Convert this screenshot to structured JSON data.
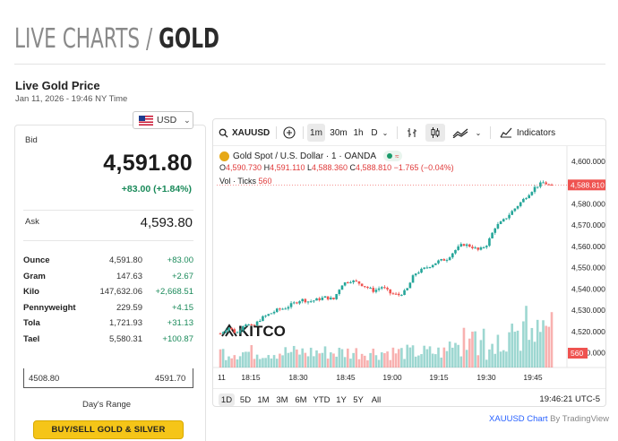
{
  "header": {
    "title_prefix": "LIVE CHARTS / ",
    "title_main": "GOLD"
  },
  "price_panel": {
    "subtitle": "Live Gold Price",
    "timestamp": "Jan 11, 2026 - 19:46 NY Time",
    "currency": "USD",
    "bid_label": "Bid",
    "bid": "4,591.80",
    "bid_change": "+83.00 (+1.84%)",
    "ask_label": "Ask",
    "ask": "4,593.80",
    "units": [
      {
        "name": "Ounce",
        "price": "4,591.80",
        "change": "+83.00"
      },
      {
        "name": "Gram",
        "price": "147.63",
        "change": "+2.67"
      },
      {
        "name": "Kilo",
        "price": "147,632.06",
        "change": "+2,668.51"
      },
      {
        "name": "Pennyweight",
        "price": "229.59",
        "change": "+4.15"
      },
      {
        "name": "Tola",
        "price": "1,721.93",
        "change": "+31.13"
      },
      {
        "name": "Tael",
        "price": "5,580.31",
        "change": "+100.87"
      }
    ],
    "range_low": "4508.80",
    "range_high": "4591.70",
    "range_label": "Day's Range",
    "buy_button": "BUY/SELL GOLD & SILVER"
  },
  "chart_toolbar": {
    "symbol": "XAUUSD",
    "intervals": [
      "1m",
      "30m",
      "1h",
      "D"
    ],
    "active_interval": "1m",
    "indicators_label": "Indicators"
  },
  "chart_legend": {
    "instrument": "Gold Spot / U.S. Dollar · 1 · OANDA",
    "open_label": "O",
    "open": "4,590.730",
    "high_label": "H",
    "high": "4,591.110",
    "low_label": "L",
    "low": "4,588.360",
    "close_label": "C",
    "close": "4,588.810",
    "change": "−1.765 (−0.04%)",
    "volume_label": "Vol · Ticks",
    "volume": "560"
  },
  "chart_data": {
    "type": "candlestick",
    "title": "Gold Spot / U.S. Dollar · 1 · OANDA",
    "x_tick_labels": [
      "11",
      "18:15",
      "18:30",
      "18:45",
      "19:00",
      "19:15",
      "19:30",
      "19:45"
    ],
    "y_tick_labels": [
      "4,600.000",
      "4,590.000",
      "4,580.000",
      "4,570.000",
      "4,560.000",
      "4,550.000",
      "4,540.000",
      "4,530.000",
      "4,520.000",
      "4,510.000"
    ],
    "ylim": [
      4506,
      4602
    ],
    "last_price_label": "4,588.810",
    "last_volume_label": "560",
    "up_color": "#26a69a",
    "down_color": "#ef5350",
    "watermark": "KITCO",
    "price_path": [
      [
        0,
        4519
      ],
      [
        4,
        4522
      ],
      [
        8,
        4519
      ],
      [
        12,
        4524
      ],
      [
        16,
        4522
      ],
      [
        20,
        4526
      ],
      [
        24,
        4528
      ],
      [
        28,
        4530
      ],
      [
        32,
        4531
      ],
      [
        36,
        4533
      ],
      [
        40,
        4535
      ],
      [
        44,
        4534
      ],
      [
        48,
        4535
      ],
      [
        52,
        4536
      ],
      [
        56,
        4535
      ],
      [
        60,
        4542
      ],
      [
        64,
        4544
      ],
      [
        68,
        4543
      ],
      [
        72,
        4541
      ],
      [
        76,
        4539
      ],
      [
        80,
        4541
      ],
      [
        84,
        4538
      ],
      [
        88,
        4537
      ],
      [
        92,
        4539
      ],
      [
        96,
        4547
      ],
      [
        100,
        4549
      ],
      [
        104,
        4551
      ],
      [
        108,
        4553
      ],
      [
        112,
        4554
      ],
      [
        116,
        4558
      ],
      [
        120,
        4561
      ],
      [
        124,
        4560
      ],
      [
        128,
        4558
      ],
      [
        132,
        4561
      ],
      [
        136,
        4569
      ],
      [
        140,
        4572
      ],
      [
        144,
        4576
      ],
      [
        148,
        4580
      ],
      [
        152,
        4584
      ],
      [
        156,
        4588
      ],
      [
        160,
        4590
      ],
      [
        164,
        4588
      ]
    ]
  },
  "chart_range": {
    "ranges": [
      "1D",
      "5D",
      "1M",
      "3M",
      "6M",
      "YTD",
      "1Y",
      "5Y",
      "All"
    ],
    "active_range": "1D",
    "time": "19:46:21 UTC-5"
  },
  "attribution": {
    "symbol_chart": "XAUUSD Chart",
    "by": " By TradingView"
  }
}
